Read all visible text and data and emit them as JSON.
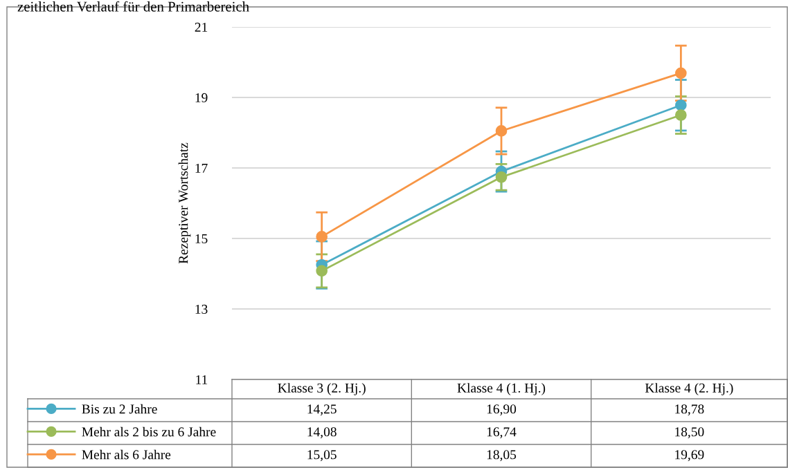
{
  "chart_data": {
    "type": "line",
    "title": "zeitlichen Verlauf für den Primarbereich",
    "ylabel": "Rezeptiver Wortschatz",
    "categories": [
      "Klasse 3 (2. Hj.)",
      "Klasse 4 (1. Hj.)",
      "Klasse 4 (2. Hj.)"
    ],
    "series": [
      {
        "name": "Bis zu 2 Jahre",
        "color": "#4bacc6",
        "values": [
          14.25,
          16.9,
          18.78
        ],
        "errors": [
          0.67,
          0.57,
          0.72
        ],
        "value_labels": [
          "14,25",
          "16,90",
          "18,78"
        ]
      },
      {
        "name": "Mehr als 2 bis zu 6 Jahre",
        "color": "#9bbb59",
        "values": [
          14.08,
          16.74,
          18.5
        ],
        "errors": [
          0.47,
          0.37,
          0.53
        ],
        "value_labels": [
          "14,08",
          "16,74",
          "18,50"
        ]
      },
      {
        "name": "Mehr als 6 Jahre",
        "color": "#f79646",
        "values": [
          15.05,
          18.05,
          19.69
        ],
        "errors": [
          0.69,
          0.66,
          0.78
        ],
        "value_labels": [
          "15,05",
          "18,05",
          "19,69"
        ]
      }
    ],
    "ylim": [
      11,
      21
    ],
    "yticks": [
      11,
      13,
      15,
      17,
      19,
      21
    ],
    "grid": "y",
    "legend": "bottom",
    "marker": "circle",
    "line_style": "solid"
  }
}
